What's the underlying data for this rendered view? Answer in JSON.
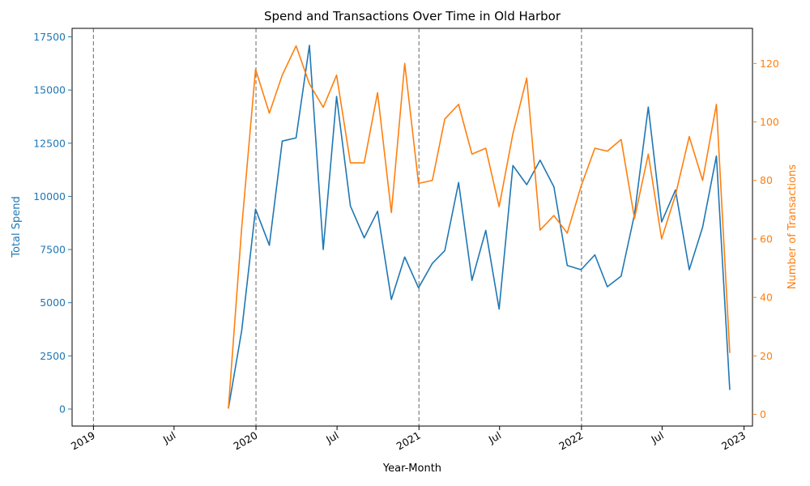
{
  "chart_data": {
    "type": "line",
    "title": "Spend and Transactions Over Time in Old Harbor",
    "xlabel": "Year-Month",
    "ylabel_left": "Total Spend",
    "ylabel_right": "Number of Transactions",
    "x_ticks": [
      {
        "date": "2019-01-01",
        "label": "2019"
      },
      {
        "date": "2019-07-01",
        "label": "Jul"
      },
      {
        "date": "2020-01-01",
        "label": "2020"
      },
      {
        "date": "2020-07-01",
        "label": "Jul"
      },
      {
        "date": "2021-01-01",
        "label": "2021"
      },
      {
        "date": "2021-07-01",
        "label": "Jul"
      },
      {
        "date": "2022-01-01",
        "label": "2022"
      },
      {
        "date": "2022-07-01",
        "label": "Jul"
      },
      {
        "date": "2023-01-01",
        "label": "2023"
      }
    ],
    "year_lines": [
      "2019-01-01",
      "2020-01-01",
      "2021-01-01",
      "2022-01-01"
    ],
    "xlim": [
      "2018-11-14",
      "2023-01-20"
    ],
    "ylim_left": [
      -800,
      17900
    ],
    "ylim_right": [
      -4,
      132
    ],
    "yticks_left": [
      0,
      2500,
      5000,
      7500,
      10000,
      12500,
      15000,
      17500
    ],
    "yticks_right": [
      0,
      20,
      40,
      60,
      80,
      100,
      120
    ],
    "colors": {
      "spend": "#1f77b4",
      "transactions": "#ff7f0e",
      "year_line": "#808080"
    },
    "dates": [
      "2019-10-31",
      "2019-11-30",
      "2019-12-31",
      "2020-01-31",
      "2020-02-29",
      "2020-03-31",
      "2020-04-30",
      "2020-05-31",
      "2020-06-30",
      "2020-07-31",
      "2020-08-31",
      "2020-09-30",
      "2020-10-31",
      "2020-11-30",
      "2020-12-31",
      "2021-01-31",
      "2021-02-28",
      "2021-03-31",
      "2021-04-30",
      "2021-05-31",
      "2021-06-30",
      "2021-07-31",
      "2021-08-31",
      "2021-09-30",
      "2021-10-31",
      "2021-11-30",
      "2021-12-31",
      "2022-01-31",
      "2022-02-28",
      "2022-03-31",
      "2022-04-30",
      "2022-05-31",
      "2022-06-30",
      "2022-07-31",
      "2022-08-31",
      "2022-09-30",
      "2022-10-31",
      "2022-11-30"
    ],
    "series": [
      {
        "name": "Total Spend",
        "axis": "left",
        "values": [
          30,
          3700,
          9400,
          7700,
          12600,
          12750,
          17100,
          7500,
          14700,
          9550,
          8050,
          9300,
          5150,
          7150,
          5700,
          6850,
          7450,
          10650,
          6050,
          8400,
          4700,
          11450,
          10550,
          11700,
          10450,
          6750,
          6550,
          7250,
          5750,
          6250,
          9150,
          14200,
          8800,
          10300,
          6550,
          8550,
          11900,
          900
        ]
      },
      {
        "name": "Number of Transactions",
        "axis": "right",
        "values": [
          2,
          64,
          118,
          103,
          116,
          126,
          113,
          105,
          116,
          86,
          86,
          110,
          69,
          120,
          79,
          80,
          101,
          106,
          89,
          91,
          71,
          96,
          115,
          63,
          68,
          62,
          78,
          91,
          90,
          94,
          67,
          89,
          60,
          75,
          95,
          80,
          106,
          21
        ]
      }
    ]
  }
}
